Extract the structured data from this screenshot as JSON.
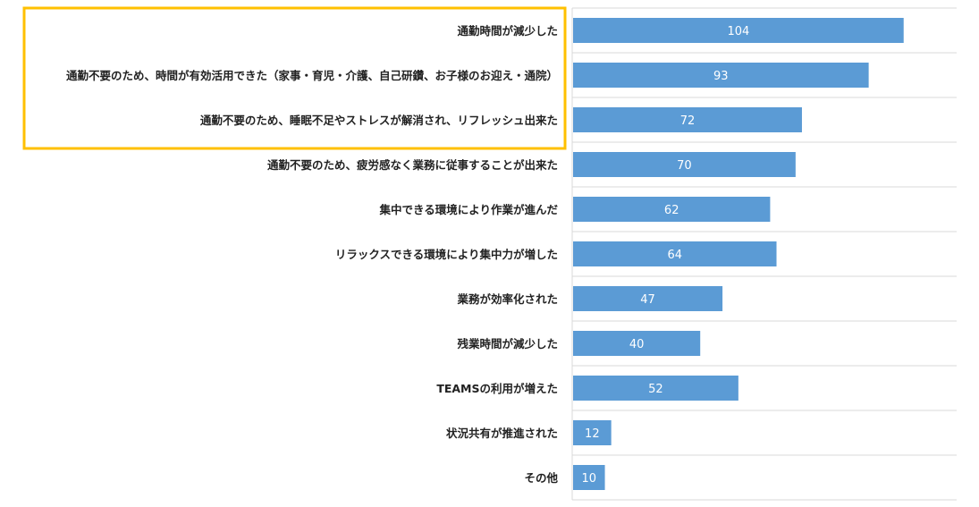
{
  "chart_data": {
    "type": "bar",
    "orientation": "horizontal",
    "categories": [
      "通勤時間が減少した",
      "通勤不要のため、時間が有効活用できた（家事・育児・介護、自己研鑽、お子様のお迎え・通院）",
      "通勤不要のため、睡眠不足やストレスが解消され、リフレッシュ出来た",
      "通勤不要のため、疲労感なく業務に従事することが出来た",
      "集中できる環境により作業が進んだ",
      "リラックスできる環境により集中力が増した",
      "業務が効率化された",
      "残業時間が減少した",
      "TEAMSの利用が増えた",
      "状況共有が推進された",
      "その他"
    ],
    "values": [
      104,
      93,
      72,
      70,
      62,
      64,
      47,
      40,
      52,
      12,
      10
    ],
    "xlim": [
      0,
      120
    ],
    "grid": true,
    "bar_color": "#5b9bd5",
    "highlight": {
      "categories_index": [
        0,
        1,
        2
      ],
      "border_color": "#ffc000"
    }
  }
}
